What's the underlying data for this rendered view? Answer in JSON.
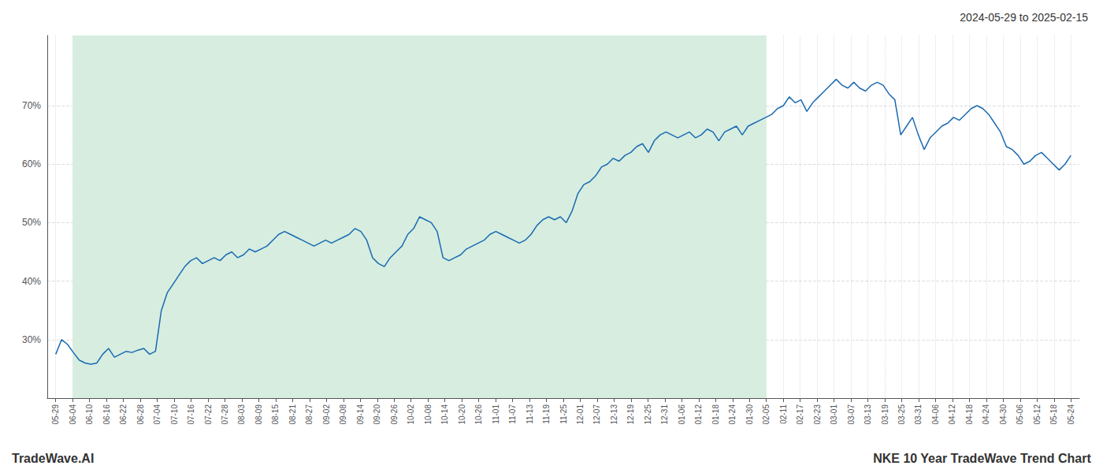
{
  "chart_data": {
    "type": "line",
    "title": "NKE 10 Year TradeWave Trend Chart",
    "subtitle": "2024-05-29 to 2025-02-15",
    "annotations": [
      "TradeWave.AI"
    ],
    "color": "#1a6ab0",
    "grid": true,
    "shaded_range": {
      "from": 1,
      "to": 42,
      "color": "#d6ede0"
    },
    "xlim": [
      -0.5,
      60.5
    ],
    "xticks": [
      {
        "value": 0,
        "label": "05-29"
      },
      {
        "value": 1,
        "label": "06-04"
      },
      {
        "value": 2,
        "label": "06-10"
      },
      {
        "value": 3,
        "label": "06-16"
      },
      {
        "value": 4,
        "label": "06-22"
      },
      {
        "value": 5,
        "label": "06-28"
      },
      {
        "value": 6,
        "label": "07-04"
      },
      {
        "value": 7,
        "label": "07-10"
      },
      {
        "value": 8,
        "label": "07-16"
      },
      {
        "value": 9,
        "label": "07-22"
      },
      {
        "value": 10,
        "label": "07-28"
      },
      {
        "value": 11,
        "label": "08-03"
      },
      {
        "value": 12,
        "label": "08-09"
      },
      {
        "value": 13,
        "label": "08-15"
      },
      {
        "value": 14,
        "label": "08-21"
      },
      {
        "value": 15,
        "label": "08-27"
      },
      {
        "value": 16,
        "label": "09-02"
      },
      {
        "value": 17,
        "label": "09-08"
      },
      {
        "value": 18,
        "label": "09-14"
      },
      {
        "value": 19,
        "label": "09-20"
      },
      {
        "value": 20,
        "label": "09-26"
      },
      {
        "value": 21,
        "label": "10-02"
      },
      {
        "value": 22,
        "label": "10-08"
      },
      {
        "value": 23,
        "label": "10-14"
      },
      {
        "value": 24,
        "label": "10-20"
      },
      {
        "value": 25,
        "label": "10-26"
      },
      {
        "value": 26,
        "label": "11-01"
      },
      {
        "value": 27,
        "label": "11-07"
      },
      {
        "value": 28,
        "label": "11-13"
      },
      {
        "value": 29,
        "label": "11-19"
      },
      {
        "value": 30,
        "label": "11-25"
      },
      {
        "value": 31,
        "label": "12-01"
      },
      {
        "value": 32,
        "label": "12-07"
      },
      {
        "value": 33,
        "label": "12-13"
      },
      {
        "value": 34,
        "label": "12-19"
      },
      {
        "value": 35,
        "label": "12-25"
      },
      {
        "value": 36,
        "label": "12-31"
      },
      {
        "value": 37,
        "label": "01-06"
      },
      {
        "value": 38,
        "label": "01-12"
      },
      {
        "value": 39,
        "label": "01-18"
      },
      {
        "value": 40,
        "label": "01-24"
      },
      {
        "value": 41,
        "label": "01-30"
      },
      {
        "value": 42,
        "label": "02-05"
      },
      {
        "value": 43,
        "label": "02-11"
      },
      {
        "value": 44,
        "label": "02-17"
      },
      {
        "value": 45,
        "label": "02-23"
      },
      {
        "value": 46,
        "label": "03-01"
      },
      {
        "value": 47,
        "label": "03-07"
      },
      {
        "value": 48,
        "label": "03-13"
      },
      {
        "value": 49,
        "label": "03-19"
      },
      {
        "value": 50,
        "label": "03-25"
      },
      {
        "value": 51,
        "label": "03-31"
      },
      {
        "value": 52,
        "label": "04-06"
      },
      {
        "value": 53,
        "label": "04-12"
      },
      {
        "value": 54,
        "label": "04-18"
      },
      {
        "value": 55,
        "label": "04-24"
      },
      {
        "value": 56,
        "label": "04-30"
      },
      {
        "value": 57,
        "label": "05-06"
      },
      {
        "value": 58,
        "label": "05-12"
      },
      {
        "value": 59,
        "label": "05-18"
      },
      {
        "value": 60,
        "label": "05-24"
      }
    ],
    "ylim": [
      20,
      82
    ],
    "yticks": [
      {
        "value": 30,
        "label": "30%"
      },
      {
        "value": 40,
        "label": "40%"
      },
      {
        "value": 50,
        "label": "50%"
      },
      {
        "value": 60,
        "label": "60%"
      },
      {
        "value": 70,
        "label": "70%"
      }
    ],
    "x": [
      0,
      0.3468,
      0.6936,
      1.0405,
      1.3873,
      1.7341,
      2.0809,
      2.4277,
      2.7746,
      3.1214,
      3.4682,
      3.815,
      4.1618,
      4.5087,
      4.8555,
      5.2023,
      5.5491,
      5.896,
      6.2428,
      6.5896,
      6.9364,
      7.2832,
      7.6301,
      7.9769,
      8.3237,
      8.6705,
      9.0173,
      9.3642,
      9.711,
      10.0578,
      10.4046,
      10.7514,
      11.0983,
      11.4451,
      11.7919,
      12.1387,
      12.4855,
      12.8324,
      13.1792,
      13.526,
      13.8728,
      14.2197,
      14.5665,
      14.9133,
      15.2601,
      15.6069,
      15.9538,
      16.3006,
      16.6474,
      16.9942,
      17.341,
      17.6879,
      18.0347,
      18.3815,
      18.7283,
      19.0751,
      19.422,
      19.7688,
      20.1156,
      20.4624,
      20.8092,
      21.1561,
      21.5029,
      21.8497,
      22.1965,
      22.5434,
      22.8902,
      23.237,
      23.5838,
      23.9306,
      24.2775,
      24.6243,
      24.9711,
      25.3179,
      25.6647,
      26.0116,
      26.3584,
      26.7052,
      27.052,
      27.3988,
      27.7457,
      28.0925,
      28.4393,
      28.7861,
      29.1329,
      29.4798,
      29.8266,
      30.1734,
      30.5202,
      30.8671,
      31.2139,
      31.5607,
      31.9075,
      32.2543,
      32.6012,
      32.948,
      33.2948,
      33.6416,
      33.9884,
      34.3353,
      34.6821,
      35.0289,
      35.3757,
      35.7225,
      36.0694,
      36.4162,
      36.763,
      37.1098,
      37.4566,
      37.8035,
      38.1503,
      38.4971,
      38.8439,
      39.1908,
      39.5376,
      39.8844,
      40.2312,
      40.578,
      40.9249,
      41.2717,
      41.6185,
      41.9653,
      42.3121,
      42.659,
      43.0058,
      43.3526,
      43.6994,
      44.0462,
      44.3931,
      44.7399,
      45.0867,
      45.4335,
      45.7803,
      46.1272,
      46.474,
      46.8208,
      47.1676,
      47.5145,
      47.8613,
      48.2081,
      48.5549,
      48.9017,
      49.2486,
      49.5954,
      49.9422,
      50.289,
      50.6358,
      50.9827,
      51.3295,
      51.6763,
      52.0231,
      52.3699,
      52.7168,
      53.0636,
      53.4104,
      53.7572,
      54.104,
      54.4509,
      54.7977,
      55.1445,
      55.4913,
      55.8382,
      56.185,
      56.5318,
      56.8786,
      57.2254,
      57.5723,
      57.9191,
      58.2659,
      58.6127,
      58.9595,
      59.3064,
      59.6532,
      60
    ],
    "values": [
      27.5,
      30.0,
      29.2,
      27.8,
      26.5,
      26.0,
      25.8,
      26.0,
      27.5,
      28.5,
      27.0,
      27.5,
      28.0,
      27.8,
      28.2,
      28.5,
      27.5,
      28.0,
      35.0,
      38.0,
      39.5,
      41.0,
      42.5,
      43.5,
      44.0,
      43.0,
      43.5,
      44.0,
      43.5,
      44.5,
      45.0,
      44.0,
      44.5,
      45.5,
      45.0,
      45.5,
      46.0,
      47.0,
      48.0,
      48.5,
      48.0,
      47.5,
      47.0,
      46.5,
      46.0,
      46.5,
      47.0,
      46.5,
      47.0,
      47.5,
      48.0,
      49.0,
      48.5,
      47.0,
      44.0,
      43.0,
      42.5,
      44.0,
      45.0,
      46.0,
      48.0,
      49.0,
      51.0,
      50.5,
      50.0,
      48.5,
      44.0,
      43.5,
      44.0,
      44.5,
      45.5,
      46.0,
      46.5,
      47.0,
      48.0,
      48.5,
      48.0,
      47.5,
      47.0,
      46.5,
      47.0,
      48.0,
      49.5,
      50.5,
      51.0,
      50.5,
      51.0,
      50.0,
      52.0,
      55.0,
      56.5,
      57.0,
      58.0,
      59.5,
      60.0,
      61.0,
      60.5,
      61.5,
      62.0,
      63.0,
      63.5,
      62.0,
      64.0,
      65.0,
      65.5,
      65.0,
      64.5,
      65.0,
      65.5,
      64.5,
      65.0,
      66.0,
      65.5,
      64.0,
      65.5,
      66.0,
      66.5,
      65.0,
      66.5,
      67.0,
      67.5,
      68.0,
      68.5,
      69.5,
      70.0,
      71.5,
      70.5,
      71.0,
      69.0,
      70.5,
      71.5,
      72.5,
      73.5,
      74.5,
      73.5,
      73.0,
      74.0,
      73.0,
      72.5,
      73.5,
      74.0,
      73.5,
      72.0,
      71.0,
      65.0,
      66.5,
      68.0,
      65.0,
      62.5,
      64.5,
      65.5,
      66.5,
      67.0,
      68.0,
      67.5,
      68.5,
      69.5,
      70.0,
      69.5,
      68.5,
      67.0,
      65.5,
      63.0,
      62.5,
      61.5,
      60.0,
      60.5,
      61.5,
      62.0,
      61.0,
      60.0,
      59.0,
      60.0,
      61.5
    ]
  }
}
